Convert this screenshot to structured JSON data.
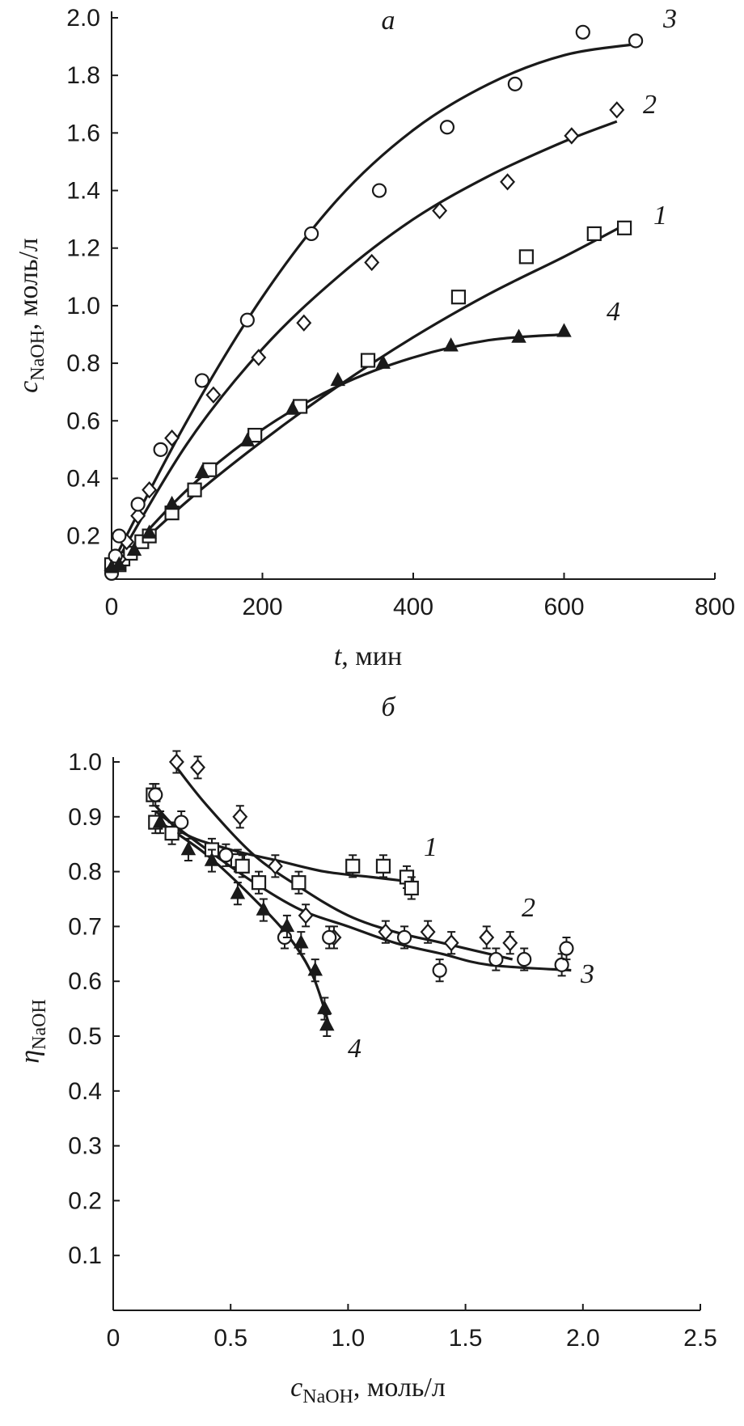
{
  "chart_data": [
    {
      "type": "scatter",
      "panel_label": "а",
      "xlabel": "t",
      "xlabel_unit": ", мин",
      "ylabel": "c",
      "ylabel_sub": "NaOH",
      "ylabel_unit": ", моль/л",
      "xlim": [
        0,
        800
      ],
      "ylim": [
        0.05,
        2.0
      ],
      "xticks": [
        0,
        200,
        400,
        600,
        800
      ],
      "yticks": [
        0.2,
        0.4,
        0.6,
        0.8,
        1.0,
        1.2,
        1.4,
        1.6,
        1.8,
        2.0
      ],
      "x_tick_labels": [
        "0",
        "200",
        "400",
        "600",
        "800"
      ],
      "y_tick_labels": [
        "0.2",
        "0.4",
        "0.6",
        "0.8",
        "1.0",
        "1.2",
        "1.4",
        "1.6",
        "1.8",
        "2.0"
      ],
      "series": [
        {
          "name": "1",
          "marker": "square",
          "points": [
            [
              0,
              0.1
            ],
            [
              10,
              0.1
            ],
            [
              15,
              0.12
            ],
            [
              25,
              0.14
            ],
            [
              40,
              0.18
            ],
            [
              50,
              0.2
            ],
            [
              80,
              0.28
            ],
            [
              110,
              0.36
            ],
            [
              130,
              0.43
            ],
            [
              190,
              0.55
            ],
            [
              250,
              0.65
            ],
            [
              340,
              0.81
            ],
            [
              460,
              1.03
            ],
            [
              550,
              1.17
            ],
            [
              640,
              1.25
            ],
            [
              680,
              1.27
            ]
          ],
          "fit": [
            [
              0,
              0.08
            ],
            [
              100,
              0.32
            ],
            [
              200,
              0.53
            ],
            [
              300,
              0.72
            ],
            [
              400,
              0.89
            ],
            [
              500,
              1.04
            ],
            [
              600,
              1.17
            ],
            [
              680,
              1.28
            ]
          ]
        },
        {
          "name": "2",
          "marker": "diamond",
          "points": [
            [
              0,
              0.08
            ],
            [
              10,
              0.12
            ],
            [
              20,
              0.18
            ],
            [
              35,
              0.27
            ],
            [
              50,
              0.36
            ],
            [
              80,
              0.54
            ],
            [
              135,
              0.69
            ],
            [
              195,
              0.82
            ],
            [
              255,
              0.94
            ],
            [
              345,
              1.15
            ],
            [
              435,
              1.33
            ],
            [
              525,
              1.43
            ],
            [
              610,
              1.59
            ],
            [
              670,
              1.68
            ]
          ],
          "fit": [
            [
              0,
              0.08
            ],
            [
              100,
              0.52
            ],
            [
              200,
              0.85
            ],
            [
              300,
              1.1
            ],
            [
              400,
              1.3
            ],
            [
              500,
              1.45
            ],
            [
              600,
              1.57
            ],
            [
              670,
              1.64
            ]
          ]
        },
        {
          "name": "3",
          "marker": "circle",
          "points": [
            [
              0,
              0.07
            ],
            [
              5,
              0.13
            ],
            [
              10,
              0.2
            ],
            [
              35,
              0.31
            ],
            [
              65,
              0.5
            ],
            [
              120,
              0.74
            ],
            [
              180,
              0.95
            ],
            [
              265,
              1.25
            ],
            [
              355,
              1.4
            ],
            [
              445,
              1.62
            ],
            [
              535,
              1.77
            ],
            [
              625,
              1.95
            ],
            [
              695,
              1.92
            ]
          ],
          "fit": [
            [
              0,
              0.1
            ],
            [
              100,
              0.6
            ],
            [
              200,
              1.03
            ],
            [
              300,
              1.37
            ],
            [
              400,
              1.61
            ],
            [
              500,
              1.77
            ],
            [
              600,
              1.87
            ],
            [
              700,
              1.91
            ]
          ]
        },
        {
          "name": "4",
          "marker": "triangle-filled",
          "points": [
            [
              0,
              0.09
            ],
            [
              10,
              0.1
            ],
            [
              30,
              0.15
            ],
            [
              50,
              0.21
            ],
            [
              80,
              0.31
            ],
            [
              120,
              0.42
            ],
            [
              180,
              0.53
            ],
            [
              240,
              0.64
            ],
            [
              300,
              0.74
            ],
            [
              360,
              0.8
            ],
            [
              450,
              0.86
            ],
            [
              540,
              0.89
            ],
            [
              600,
              0.91
            ]
          ],
          "fit": [
            [
              0,
              0.08
            ],
            [
              100,
              0.36
            ],
            [
              200,
              0.57
            ],
            [
              300,
              0.72
            ],
            [
              400,
              0.82
            ],
            [
              500,
              0.88
            ],
            [
              600,
              0.9
            ]
          ]
        }
      ],
      "curve_labels": [
        "1",
        "2",
        "3",
        "4"
      ]
    },
    {
      "type": "scatter",
      "panel_label": "б",
      "xlabel": "c",
      "xlabel_sub": "NaOH",
      "xlabel_unit": ", моль/л",
      "ylabel": "η",
      "ylabel_sub": "NaOH",
      "xlim": [
        0,
        2.5
      ],
      "ylim": [
        0,
        1.0
      ],
      "xticks": [
        0,
        0.5,
        1.0,
        1.5,
        2.0,
        2.5
      ],
      "yticks": [
        0.1,
        0.2,
        0.3,
        0.4,
        0.5,
        0.6,
        0.7,
        0.8,
        0.9,
        1.0
      ],
      "x_tick_labels": [
        "0",
        "0.5",
        "1.0",
        "1.5",
        "2.0",
        "2.5"
      ],
      "y_tick_labels": [
        "0.1",
        "0.2",
        "0.3",
        "0.4",
        "0.5",
        "0.6",
        "0.7",
        "0.8",
        "0.9",
        "1.0"
      ],
      "error_bar": 0.02,
      "series": [
        {
          "name": "1",
          "marker": "square",
          "points": [
            [
              0.17,
              0.94
            ],
            [
              0.18,
              0.89
            ],
            [
              0.25,
              0.87
            ],
            [
              0.42,
              0.84
            ],
            [
              0.53,
              0.82
            ],
            [
              0.55,
              0.81
            ],
            [
              0.62,
              0.78
            ],
            [
              0.79,
              0.78
            ],
            [
              1.02,
              0.81
            ],
            [
              1.15,
              0.81
            ],
            [
              1.25,
              0.79
            ],
            [
              1.27,
              0.77
            ]
          ],
          "fit": [
            [
              0.18,
              0.92
            ],
            [
              0.3,
              0.87
            ],
            [
              0.5,
              0.84
            ],
            [
              0.7,
              0.82
            ],
            [
              0.9,
              0.8
            ],
            [
              1.1,
              0.79
            ],
            [
              1.3,
              0.78
            ]
          ]
        },
        {
          "name": "2",
          "marker": "diamond",
          "points": [
            [
              0.27,
              1.0
            ],
            [
              0.36,
              0.99
            ],
            [
              0.54,
              0.9
            ],
            [
              0.69,
              0.81
            ],
            [
              0.82,
              0.72
            ],
            [
              0.94,
              0.68
            ],
            [
              1.16,
              0.69
            ],
            [
              1.34,
              0.69
            ],
            [
              1.44,
              0.67
            ],
            [
              1.59,
              0.68
            ],
            [
              1.69,
              0.67
            ]
          ],
          "fit": [
            [
              0.27,
              0.99
            ],
            [
              0.4,
              0.92
            ],
            [
              0.6,
              0.83
            ],
            [
              0.8,
              0.77
            ],
            [
              1.0,
              0.72
            ],
            [
              1.2,
              0.69
            ],
            [
              1.4,
              0.67
            ],
            [
              1.7,
              0.64
            ]
          ]
        },
        {
          "name": "3",
          "marker": "circle",
          "points": [
            [
              0.18,
              0.94
            ],
            [
              0.29,
              0.89
            ],
            [
              0.48,
              0.83
            ],
            [
              0.73,
              0.68
            ],
            [
              0.92,
              0.68
            ],
            [
              1.24,
              0.68
            ],
            [
              1.39,
              0.62
            ],
            [
              1.63,
              0.64
            ],
            [
              1.75,
              0.64
            ],
            [
              1.91,
              0.63
            ],
            [
              1.93,
              0.66
            ]
          ],
          "fit": [
            [
              0.18,
              0.91
            ],
            [
              0.4,
              0.84
            ],
            [
              0.6,
              0.78
            ],
            [
              0.8,
              0.73
            ],
            [
              1.0,
              0.7
            ],
            [
              1.2,
              0.67
            ],
            [
              1.4,
              0.65
            ],
            [
              1.6,
              0.63
            ],
            [
              1.95,
              0.62
            ]
          ]
        },
        {
          "name": "4",
          "marker": "triangle-filled",
          "points": [
            [
              0.2,
              0.89
            ],
            [
              0.32,
              0.84
            ],
            [
              0.42,
              0.82
            ],
            [
              0.53,
              0.76
            ],
            [
              0.64,
              0.73
            ],
            [
              0.74,
              0.7
            ],
            [
              0.8,
              0.67
            ],
            [
              0.86,
              0.62
            ],
            [
              0.9,
              0.55
            ],
            [
              0.91,
              0.52
            ]
          ],
          "fit": [
            [
              0.2,
              0.89
            ],
            [
              0.4,
              0.83
            ],
            [
              0.6,
              0.75
            ],
            [
              0.75,
              0.68
            ],
            [
              0.85,
              0.61
            ],
            [
              0.92,
              0.52
            ]
          ]
        }
      ],
      "curve_labels": [
        "1",
        "2",
        "3",
        "4"
      ]
    }
  ]
}
